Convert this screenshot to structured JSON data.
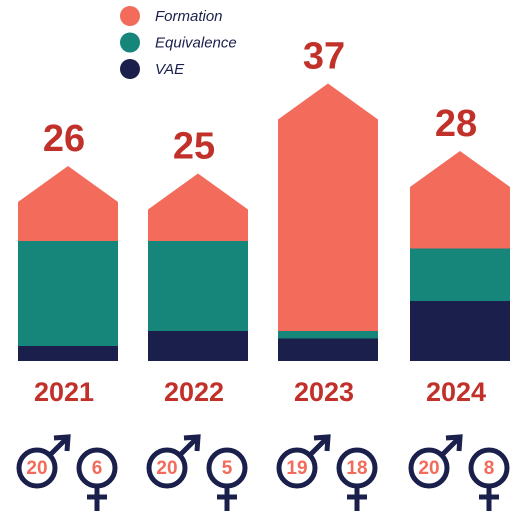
{
  "chart_data": {
    "type": "bar",
    "stacked": true,
    "categories": [
      "2021",
      "2022",
      "2023",
      "2024"
    ],
    "series": [
      {
        "name": "VAE",
        "color": "#1a1f4b",
        "values": [
          2,
          4,
          3,
          8
        ]
      },
      {
        "name": "Equivalence",
        "color": "#16857a",
        "values": [
          14,
          12,
          1,
          7
        ]
      },
      {
        "name": "Formation",
        "color": "#f26b5b",
        "values": [
          10,
          9,
          33,
          13
        ]
      }
    ],
    "totals": [
      26,
      25,
      37,
      28
    ],
    "men": [
      20,
      20,
      19,
      20
    ],
    "women": [
      6,
      5,
      18,
      8
    ]
  }
}
